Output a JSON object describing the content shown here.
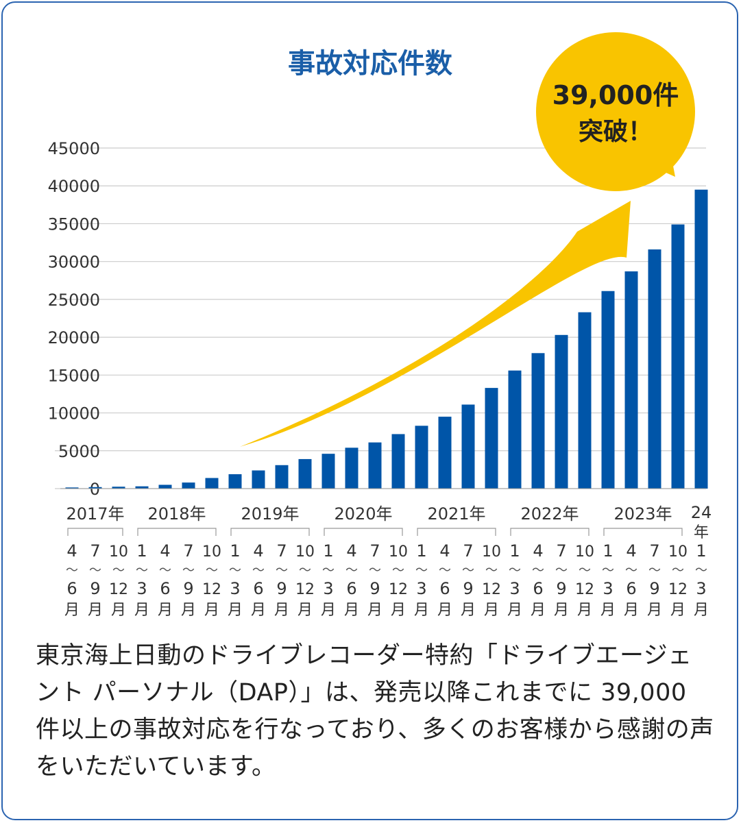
{
  "chart_data": {
    "type": "bar",
    "title": "事故対応件数",
    "xlabel": "",
    "ylabel": "",
    "ylim": [
      0,
      45000
    ],
    "yticks": [
      0,
      5000,
      10000,
      15000,
      20000,
      25000,
      30000,
      35000,
      40000,
      45000
    ],
    "grid": true,
    "series_color": "#0055a8",
    "categories": [
      "2017年 4〜6月",
      "2017年 7〜9月",
      "2017年 10〜12月",
      "2018年 1〜3月",
      "2018年 4〜6月",
      "2018年 7〜9月",
      "2018年 10〜12月",
      "2019年 1〜3月",
      "2019年 4〜6月",
      "2019年 7〜9月",
      "2019年 10〜12月",
      "2020年 1〜3月",
      "2020年 4〜6月",
      "2020年 7〜9月",
      "2020年 10〜12月",
      "2021年 1〜3月",
      "2021年 4〜6月",
      "2021年 7〜9月",
      "2021年 10〜12月",
      "2022年 1〜3月",
      "2022年 4〜6月",
      "2022年 7〜9月",
      "2022年 10〜12月",
      "2023年 1〜3月",
      "2023年 4〜6月",
      "2023年 7〜9月",
      "2023年 10〜12月",
      "24年 1〜3月"
    ],
    "values": [
      150,
      200,
      250,
      300,
      500,
      800,
      1400,
      1900,
      2400,
      3100,
      3900,
      4600,
      5400,
      6100,
      7200,
      8300,
      9500,
      11100,
      13300,
      15600,
      17900,
      20300,
      23300,
      26100,
      28700,
      31600,
      34900,
      39500
    ],
    "quarter_labels": [
      {
        "top": "4",
        "bottom": "6"
      },
      {
        "top": "7",
        "bottom": "9"
      },
      {
        "top": "10",
        "bottom": "12"
      },
      {
        "top": "1",
        "bottom": "3"
      },
      {
        "top": "4",
        "bottom": "6"
      },
      {
        "top": "7",
        "bottom": "9"
      },
      {
        "top": "10",
        "bottom": "12"
      },
      {
        "top": "1",
        "bottom": "3"
      },
      {
        "top": "4",
        "bottom": "6"
      },
      {
        "top": "7",
        "bottom": "9"
      },
      {
        "top": "10",
        "bottom": "12"
      },
      {
        "top": "1",
        "bottom": "3"
      },
      {
        "top": "4",
        "bottom": "6"
      },
      {
        "top": "7",
        "bottom": "9"
      },
      {
        "top": "10",
        "bottom": "12"
      },
      {
        "top": "1",
        "bottom": "3"
      },
      {
        "top": "4",
        "bottom": "6"
      },
      {
        "top": "7",
        "bottom": "9"
      },
      {
        "top": "10",
        "bottom": "12"
      },
      {
        "top": "1",
        "bottom": "3"
      },
      {
        "top": "4",
        "bottom": "6"
      },
      {
        "top": "7",
        "bottom": "9"
      },
      {
        "top": "10",
        "bottom": "12"
      },
      {
        "top": "1",
        "bottom": "3"
      },
      {
        "top": "4",
        "bottom": "6"
      },
      {
        "top": "7",
        "bottom": "9"
      },
      {
        "top": "10",
        "bottom": "12"
      },
      {
        "top": "1",
        "bottom": "3"
      }
    ],
    "tilde": "〜",
    "month_suffix": "月",
    "year_groups": [
      {
        "label": "2017年",
        "start": 0,
        "end": 2
      },
      {
        "label": "2018年",
        "start": 3,
        "end": 6
      },
      {
        "label": "2019年",
        "start": 7,
        "end": 10
      },
      {
        "label": "2020年",
        "start": 11,
        "end": 14
      },
      {
        "label": "2021年",
        "start": 15,
        "end": 18
      },
      {
        "label": "2022年",
        "start": 19,
        "end": 22
      },
      {
        "label": "2023年",
        "start": 23,
        "end": 26
      }
    ],
    "last_group": {
      "line1": "24",
      "line2": "年",
      "index": 27
    },
    "callout": {
      "line1": "39,000件",
      "line2": "突破！",
      "color": "#f9c400"
    },
    "arrow_color": "#f9c400"
  },
  "caption": "東京海上日動のドライブレコーダー特約「ドライブエージェント パーソナル（DAP）」は、発売以降これまでに 39,000 件以上の事故対応を行なっており、多くのお客様から感謝の声をいただいています。",
  "border_color": "#2a63b0",
  "title_color": "#1a5ea8"
}
